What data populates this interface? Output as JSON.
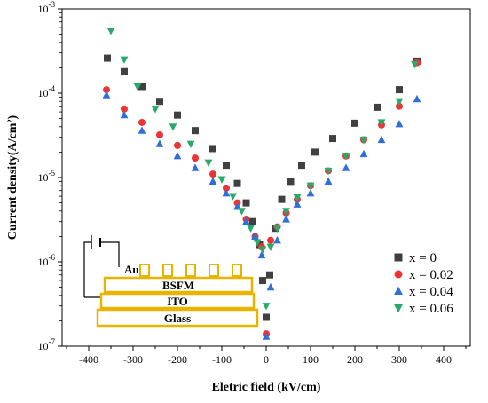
{
  "chart_data": {
    "type": "scatter",
    "title": "",
    "xlabel": "Eletric field (kV/cm)",
    "ylabel": "Current density(A/cm²)",
    "xlim": [
      -460,
      460
    ],
    "ylim": [
      1e-07,
      0.001
    ],
    "yscale": "log",
    "grid": false,
    "legend_position": "bottom-right",
    "x_ticks": [
      -400,
      -300,
      -200,
      -100,
      0,
      100,
      200,
      300,
      400
    ],
    "x_tick_labels": [
      "-400",
      "-300",
      "-200",
      "-100",
      "0",
      "100",
      "200",
      "300",
      "400"
    ],
    "y_ticks": [
      1e-07,
      1e-06,
      1e-05,
      0.0001,
      0.001
    ],
    "y_tick_labels": [
      {
        "base": "10",
        "exp": "-7"
      },
      {
        "base": "10",
        "exp": "-6"
      },
      {
        "base": "10",
        "exp": "-5"
      },
      {
        "base": "10",
        "exp": "-4"
      },
      {
        "base": "10",
        "exp": "-3"
      }
    ],
    "series": [
      {
        "name": "x = 0",
        "marker": "square",
        "color": "#404040",
        "points": [
          [
            -358,
            0.00026
          ],
          [
            -320,
            0.00018
          ],
          [
            -280,
            0.00012
          ],
          [
            -240,
            8e-05
          ],
          [
            -200,
            5.5e-05
          ],
          [
            -160,
            3.6e-05
          ],
          [
            -120,
            2.2e-05
          ],
          [
            -90,
            1.4e-05
          ],
          [
            -65,
            8.5e-06
          ],
          [
            -45,
            5e-06
          ],
          [
            -30,
            3e-06
          ],
          [
            -15,
            1.6e-06
          ],
          [
            -8,
            6e-07
          ],
          [
            0,
            2.2e-07
          ],
          [
            8,
            7e-07
          ],
          [
            20,
            2.5e-06
          ],
          [
            35,
            5.5e-06
          ],
          [
            55,
            9e-06
          ],
          [
            80,
            1.4e-05
          ],
          [
            110,
            2e-05
          ],
          [
            150,
            2.9e-05
          ],
          [
            200,
            4.4e-05
          ],
          [
            250,
            6.8e-05
          ],
          [
            300,
            0.00011
          ],
          [
            340,
            0.00024
          ]
        ]
      },
      {
        "name": "x = 0.02",
        "marker": "circle",
        "color": "#ee3333",
        "points": [
          [
            -360,
            0.00011
          ],
          [
            -320,
            6.5e-05
          ],
          [
            -280,
            4.5e-05
          ],
          [
            -240,
            3.2e-05
          ],
          [
            -200,
            2.4e-05
          ],
          [
            -160,
            1.7e-05
          ],
          [
            -120,
            1.1e-05
          ],
          [
            -90,
            7.5e-06
          ],
          [
            -65,
            5e-06
          ],
          [
            -45,
            3.2e-06
          ],
          [
            -25,
            2e-06
          ],
          [
            -10,
            1.5e-06
          ],
          [
            0,
            1.4e-07
          ],
          [
            10,
            1.8e-06
          ],
          [
            25,
            2.6e-06
          ],
          [
            45,
            3.8e-06
          ],
          [
            70,
            5.5e-06
          ],
          [
            100,
            8e-06
          ],
          [
            140,
            1.2e-05
          ],
          [
            180,
            1.8e-05
          ],
          [
            220,
            2.8e-05
          ],
          [
            260,
            4.2e-05
          ],
          [
            300,
            7e-05
          ],
          [
            340,
            0.00023
          ]
        ]
      },
      {
        "name": "x = 0.04",
        "marker": "triangle-up",
        "color": "#2f6fdc",
        "points": [
          [
            -360,
            9.5e-05
          ],
          [
            -320,
            5.5e-05
          ],
          [
            -280,
            3.6e-05
          ],
          [
            -240,
            2.5e-05
          ],
          [
            -200,
            1.8e-05
          ],
          [
            -160,
            1.3e-05
          ],
          [
            -120,
            9e-06
          ],
          [
            -90,
            6.5e-06
          ],
          [
            -65,
            4.5e-06
          ],
          [
            -45,
            3e-06
          ],
          [
            -25,
            2e-06
          ],
          [
            -10,
            1.2e-06
          ],
          [
            0,
            1.3e-07
          ],
          [
            10,
            5e-07
          ],
          [
            25,
            1.8e-06
          ],
          [
            45,
            3.2e-06
          ],
          [
            70,
            4.8e-06
          ],
          [
            100,
            6.5e-06
          ],
          [
            140,
            9e-06
          ],
          [
            180,
            1.3e-05
          ],
          [
            220,
            1.9e-05
          ],
          [
            260,
            2.8e-05
          ],
          [
            300,
            4.3e-05
          ],
          [
            340,
            8.5e-05
          ]
        ]
      },
      {
        "name": "x = 0.06",
        "marker": "triangle-down",
        "color": "#2aaa6a",
        "points": [
          [
            -350,
            0.00055
          ],
          [
            -320,
            0.00025
          ],
          [
            -290,
            0.00012
          ],
          [
            -250,
            6.5e-05
          ],
          [
            -210,
            4e-05
          ],
          [
            -170,
            2.5e-05
          ],
          [
            -130,
            1.5e-05
          ],
          [
            -100,
            9.5e-06
          ],
          [
            -75,
            6e-06
          ],
          [
            -55,
            4e-06
          ],
          [
            -35,
            2.5e-06
          ],
          [
            -20,
            1.7e-06
          ],
          [
            -8,
            1.4e-06
          ],
          [
            0,
            3e-07
          ],
          [
            10,
            1.5e-06
          ],
          [
            25,
            2.5e-06
          ],
          [
            45,
            4e-06
          ],
          [
            70,
            5.8e-06
          ],
          [
            100,
            8e-06
          ],
          [
            140,
            1.2e-05
          ],
          [
            180,
            1.8e-05
          ],
          [
            220,
            2.8e-05
          ],
          [
            260,
            4.5e-05
          ],
          [
            300,
            8e-05
          ],
          [
            335,
            0.00022
          ]
        ]
      }
    ],
    "inset": {
      "layers": [
        "Au",
        "BSFM",
        "ITO",
        "Glass"
      ],
      "color": "#e8b400"
    }
  }
}
